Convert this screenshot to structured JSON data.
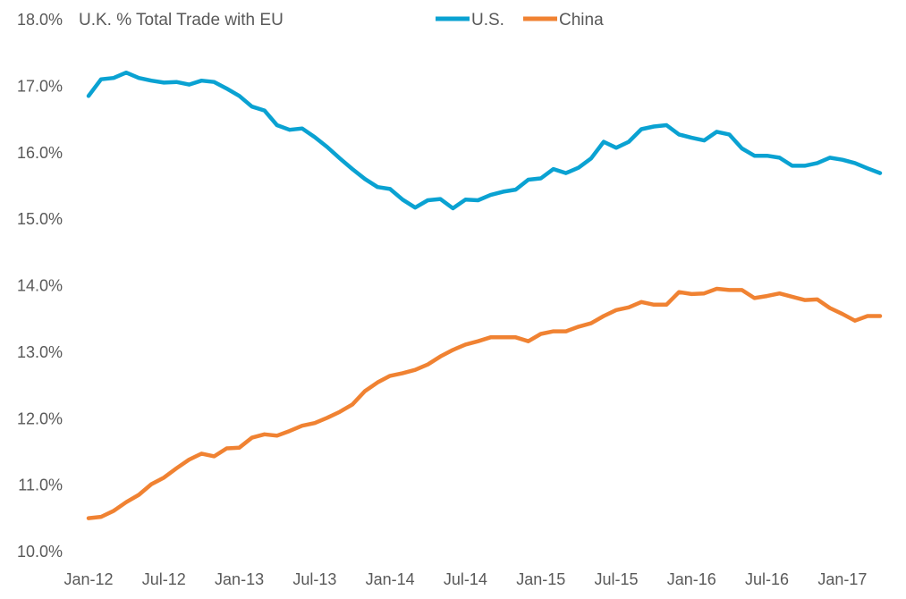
{
  "chart_data": {
    "type": "line",
    "title": "U.K. % Total Trade with EU",
    "xlabel": "",
    "ylabel": "",
    "ylim": [
      10.0,
      18.0
    ],
    "y_ticks": [
      "10.0%",
      "11.0%",
      "12.0%",
      "13.0%",
      "14.0%",
      "15.0%",
      "16.0%",
      "17.0%",
      "18.0%"
    ],
    "y_tick_values": [
      10,
      11,
      12,
      13,
      14,
      15,
      16,
      17,
      18
    ],
    "x_start": "Jan-12",
    "x_end": "Apr-17",
    "x_frequency": "monthly",
    "x_ticks": [
      "Jan-12",
      "Jul-12",
      "Jan-13",
      "Jul-13",
      "Jan-14",
      "Jul-14",
      "Jan-15",
      "Jul-15",
      "Jan-16",
      "Jul-16",
      "Jan-17"
    ],
    "x_tick_indices": [
      0,
      6,
      12,
      18,
      24,
      30,
      36,
      42,
      48,
      54,
      60
    ],
    "grid": false,
    "legend_placement": "top-center",
    "series": [
      {
        "name": "U.S.",
        "color": "#0aa2d2",
        "values": [
          16.84,
          17.09,
          17.11,
          17.19,
          17.11,
          17.07,
          17.04,
          17.05,
          17.01,
          17.07,
          17.05,
          16.95,
          16.84,
          16.68,
          16.62,
          16.4,
          16.33,
          16.35,
          16.22,
          16.07,
          15.9,
          15.74,
          15.59,
          15.47,
          15.44,
          15.28,
          15.16,
          15.27,
          15.29,
          15.15,
          15.28,
          15.27,
          15.35,
          15.4,
          15.43,
          15.58,
          15.6,
          15.74,
          15.68,
          15.76,
          15.9,
          16.15,
          16.06,
          16.15,
          16.34,
          16.38,
          16.4,
          16.26,
          16.21,
          16.17,
          16.3,
          16.26,
          16.05,
          15.94,
          15.94,
          15.91,
          15.79,
          15.79,
          15.83,
          15.91,
          15.88,
          15.83,
          15.75,
          15.68
        ]
      },
      {
        "name": "China",
        "color": "#f08232",
        "values": [
          10.49,
          10.51,
          10.6,
          10.73,
          10.84,
          11.0,
          11.1,
          11.24,
          11.37,
          11.46,
          11.42,
          11.54,
          11.55,
          11.7,
          11.75,
          11.73,
          11.8,
          11.88,
          11.92,
          12.0,
          12.09,
          12.2,
          12.4,
          12.53,
          12.63,
          12.67,
          12.72,
          12.8,
          12.92,
          13.02,
          13.1,
          13.15,
          13.21,
          13.21,
          13.21,
          13.15,
          13.26,
          13.3,
          13.3,
          13.37,
          13.42,
          13.53,
          13.62,
          13.66,
          13.74,
          13.7,
          13.7,
          13.89,
          13.86,
          13.87,
          13.94,
          13.92,
          13.92,
          13.8,
          13.83,
          13.87,
          13.82,
          13.77,
          13.78,
          13.65,
          13.56,
          13.46,
          13.53,
          13.53
        ]
      }
    ]
  }
}
